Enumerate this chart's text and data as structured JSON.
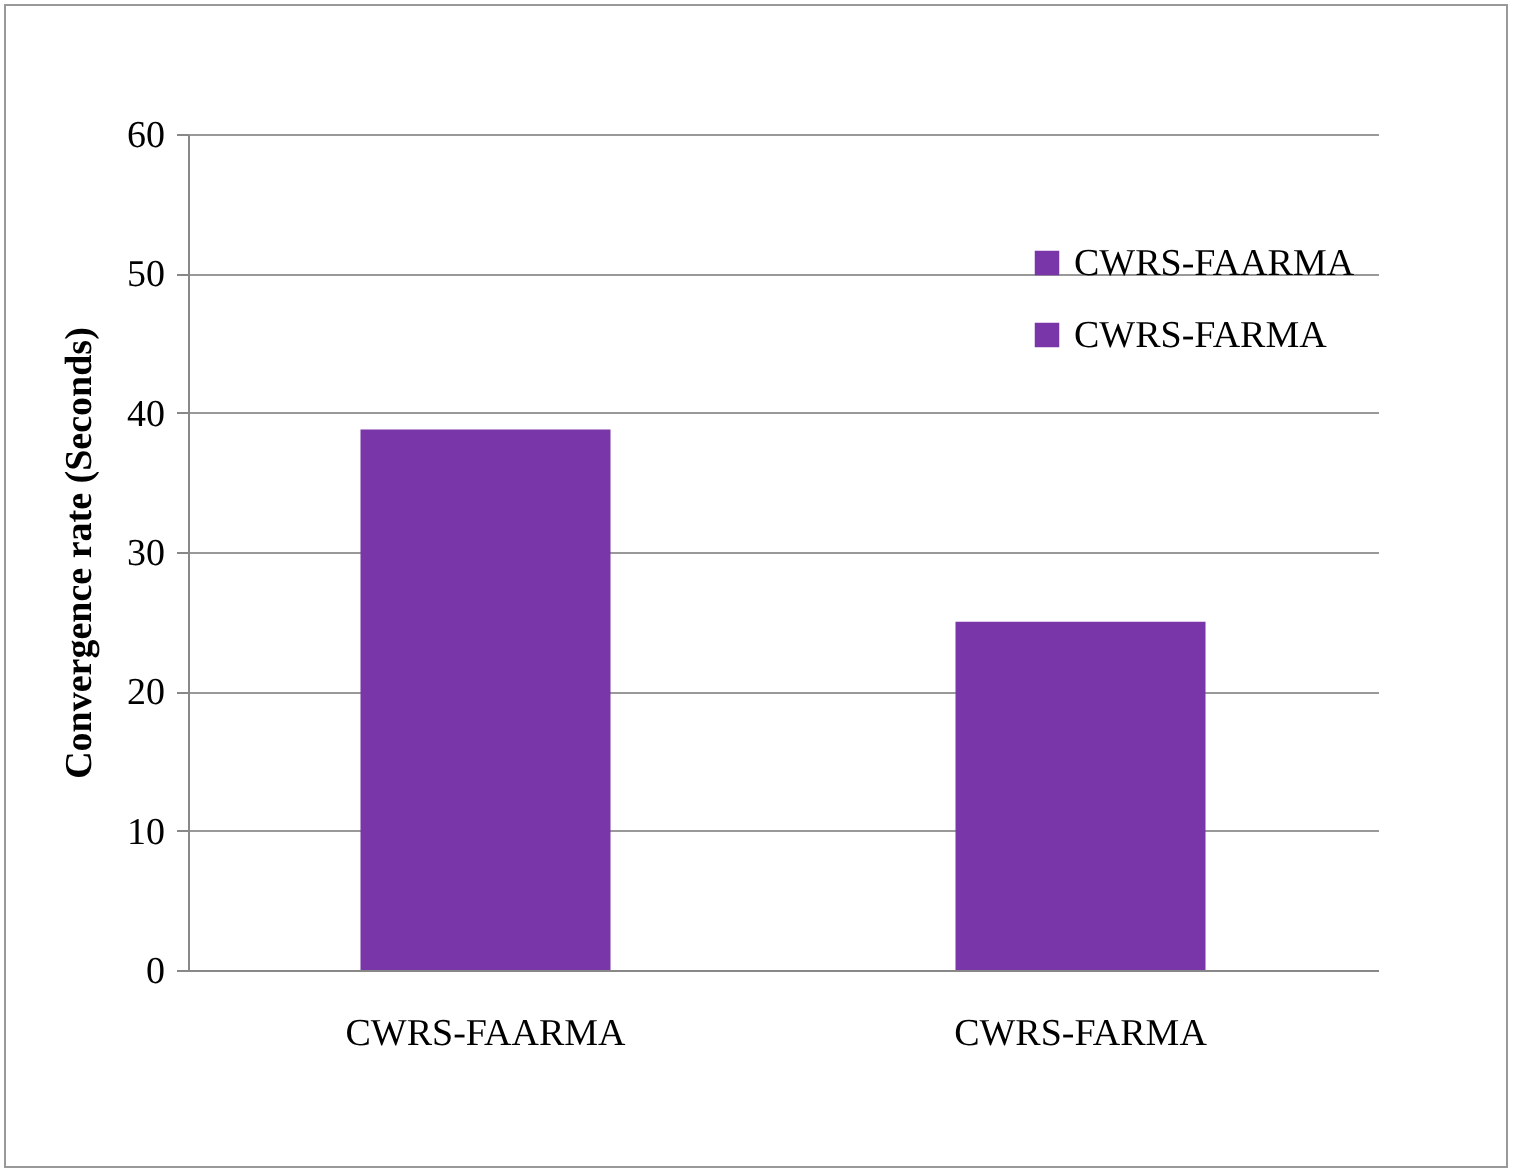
{
  "chart_data": {
    "type": "bar",
    "ylabel": "Convergence rate (Seconds)",
    "categories": [
      "CWRS-FAARMA",
      "CWRS-FARMA"
    ],
    "series": [
      {
        "name": "CWRS-FAARMA",
        "color": "#7936a8",
        "values": [
          38.8,
          null
        ]
      },
      {
        "name": "CWRS-FARMA",
        "color": "#7936a8",
        "values": [
          null,
          25
        ]
      }
    ],
    "ylim": [
      0,
      60
    ],
    "yticks": [
      0,
      10,
      20,
      30,
      40,
      50,
      60
    ],
    "grid": "y",
    "legend": "top right"
  }
}
